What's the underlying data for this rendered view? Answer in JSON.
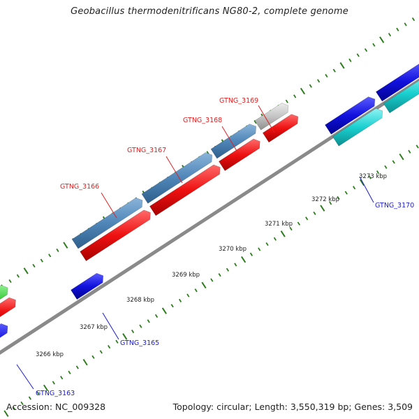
{
  "title": "Geobacillus thermodenitrificans NG80-2, complete genome",
  "accession": "Accession: NC_009328",
  "summary": "Topology: circular; Length: 3,550,319 bp; Genes: 3,509",
  "colors": {
    "backbone": "#8a8a8a",
    "tick": "#2e7d1e",
    "gene_label_red": "#e02020",
    "gene_label_blue": "#1a1acc",
    "steel_blue": "#4f86b8",
    "red": "#ee1111",
    "blue": "#1111dd",
    "cyan": "#1ad0d0",
    "green": "#3ccc3c",
    "gray": "#c4c4c4"
  },
  "scale_labels": [
    "3266 kbp",
    "3267 kbp",
    "3268 kbp",
    "3269 kbp",
    "3270 kbp",
    "3271 kbp",
    "3272 kbp",
    "3273 kbp"
  ],
  "gene_labels": [
    {
      "name": "GTNG_3163",
      "color": "blue"
    },
    {
      "name": "GTNG_3165",
      "color": "blue"
    },
    {
      "name": "GTNG_3166",
      "color": "red"
    },
    {
      "name": "GTNG_3167",
      "color": "red"
    },
    {
      "name": "GTNG_3168",
      "color": "red"
    },
    {
      "name": "GTNG_3169",
      "color": "red"
    },
    {
      "name": "GTNG_3170",
      "color": "blue"
    }
  ]
}
